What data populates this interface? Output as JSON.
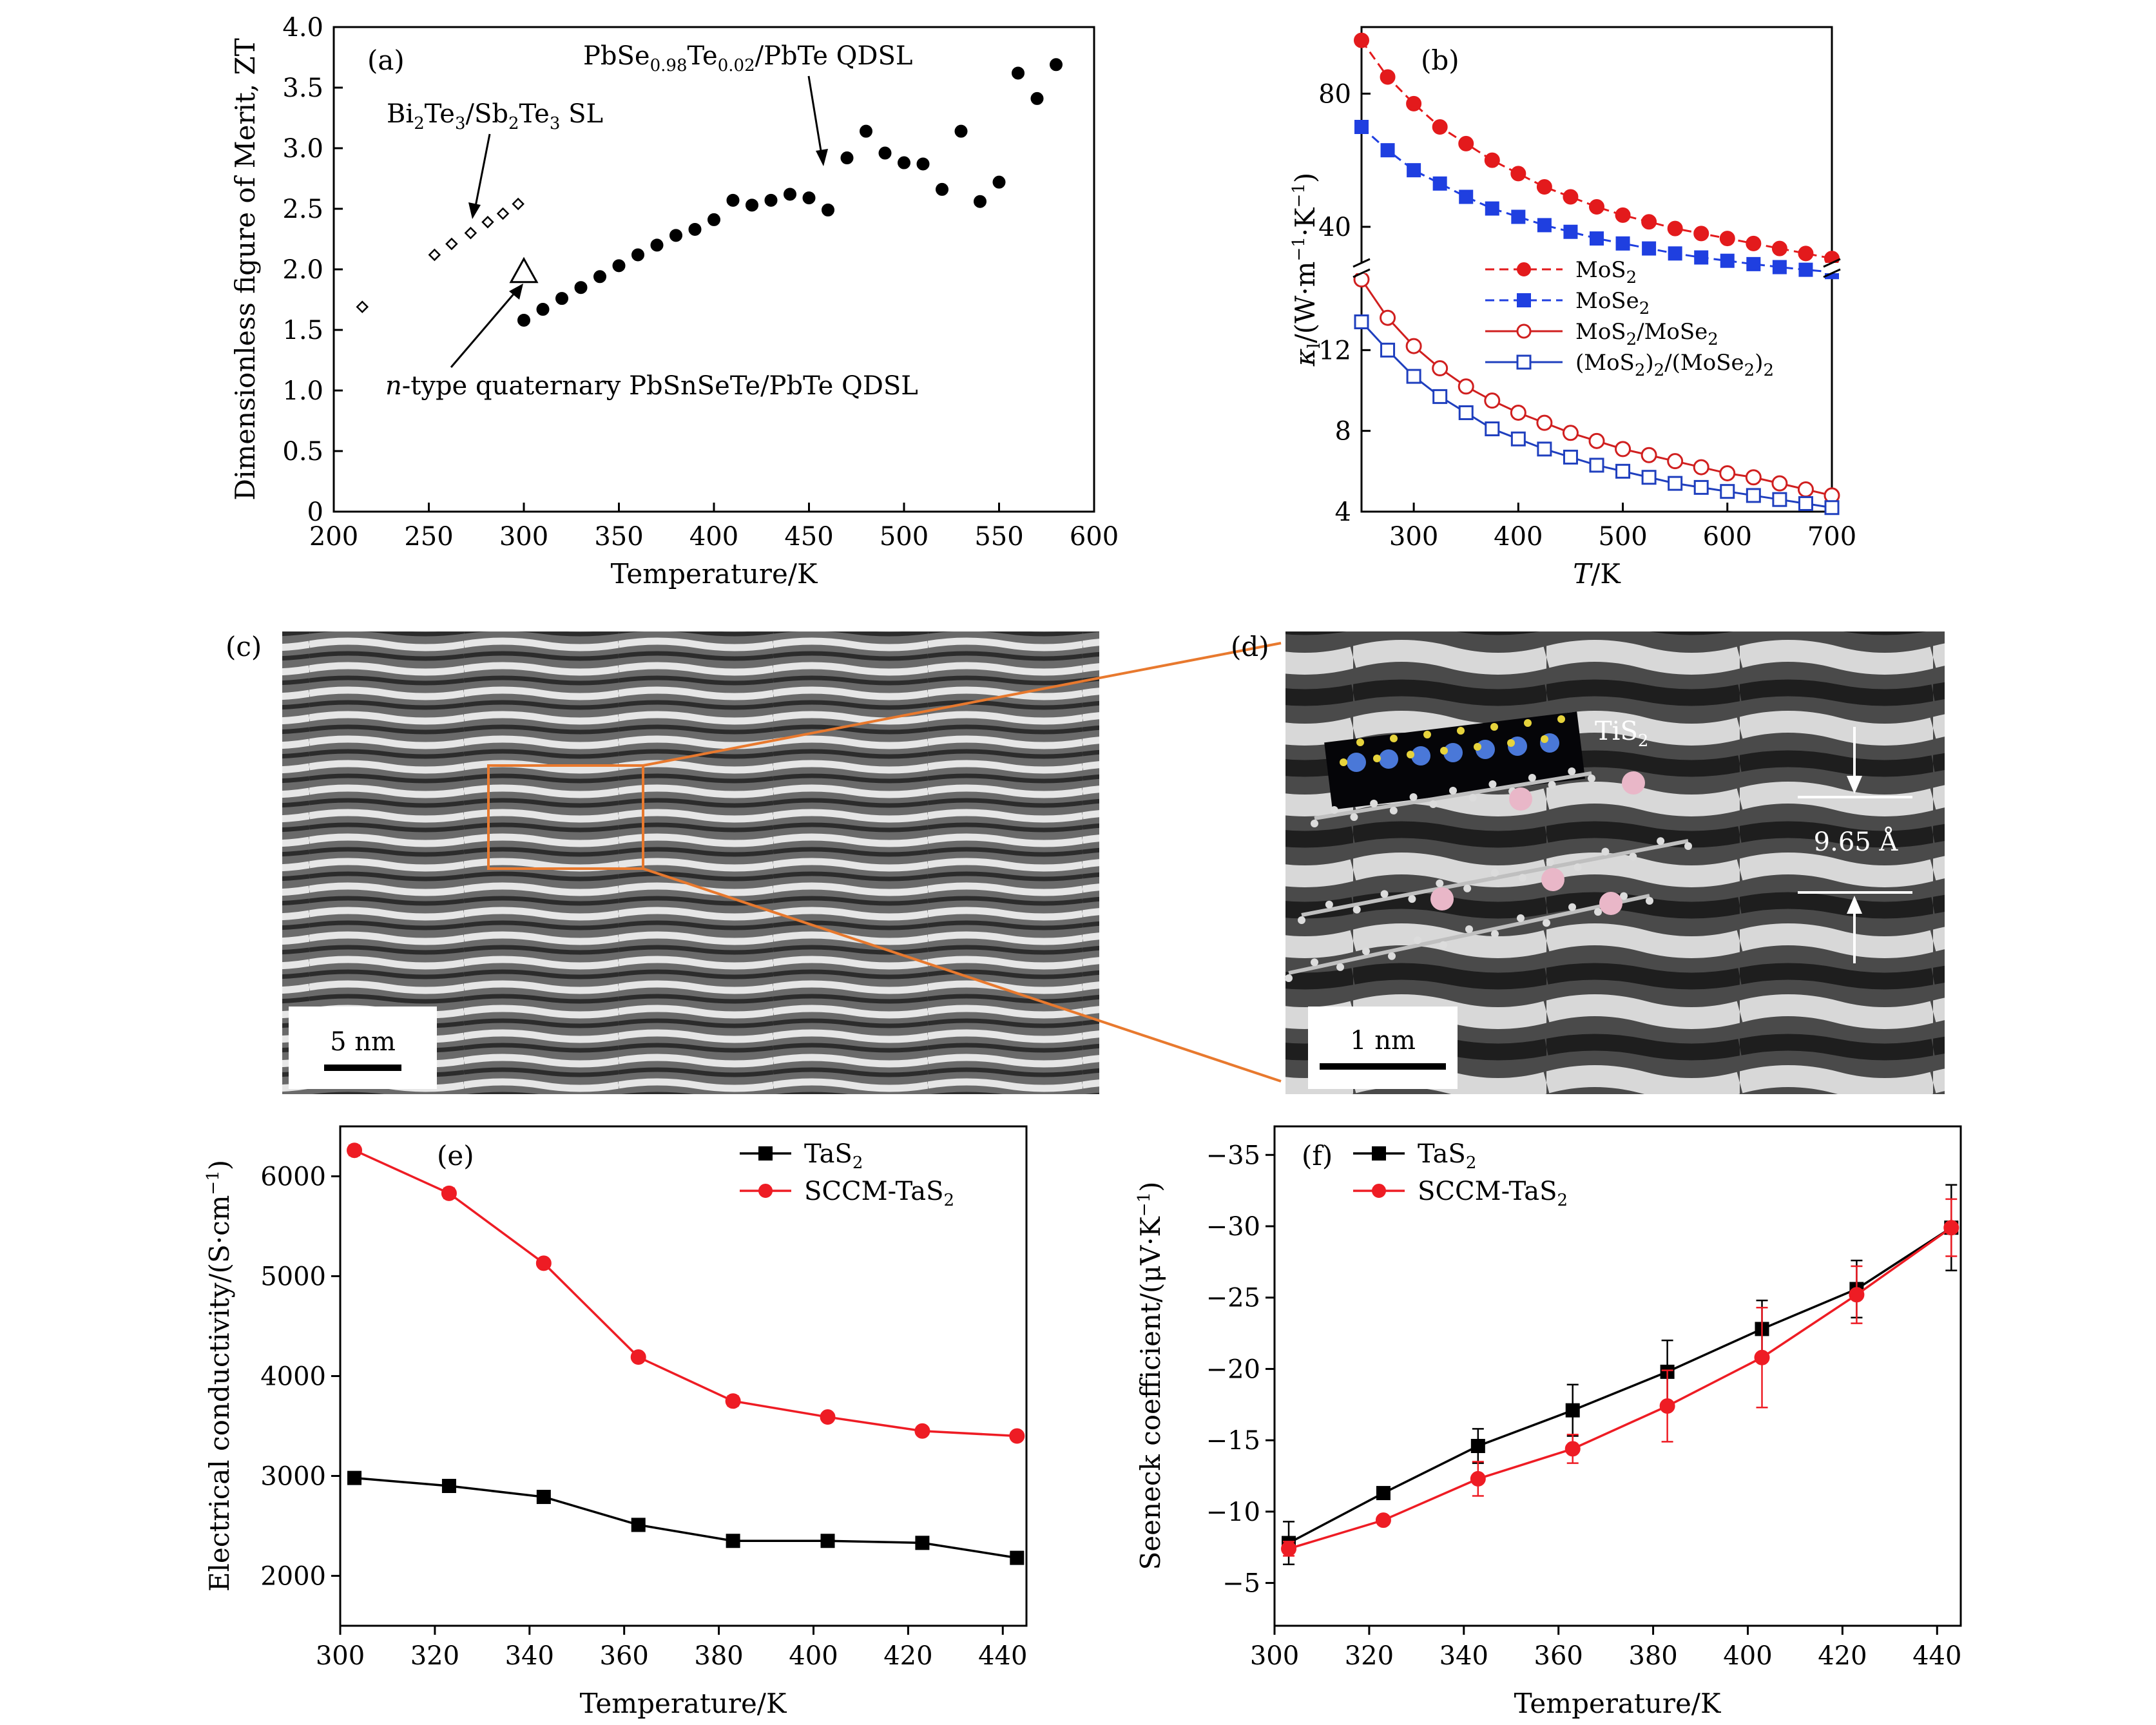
{
  "chart_data": [
    {
      "id": "a",
      "type": "scatter",
      "panel_label": "(a)",
      "xlabel": "Temperature/K",
      "ylabel": "Dimensionless figure of Merit, ZT",
      "xlim": [
        200,
        600
      ],
      "ylim": [
        0,
        4.0
      ],
      "xticks": [
        "200",
        "250",
        "300",
        "350",
        "400",
        "450",
        "500",
        "550",
        "600"
      ],
      "yticks": [
        "0",
        "0.5",
        "1.0",
        "1.5",
        "2.0",
        "2.5",
        "3.0",
        "3.5",
        "4.0"
      ],
      "series": [
        {
          "name": "Bi2Te3/Sb2Te3 SL",
          "marker": "diamond-open",
          "x": [
            215,
            253,
            262,
            272,
            281,
            289,
            297
          ],
          "y": [
            1.69,
            2.12,
            2.21,
            2.3,
            2.39,
            2.46,
            2.54
          ]
        },
        {
          "name": "n-type quaternary PbSnSeTe/PbTe QDSL",
          "marker": "triangle-open",
          "x": [
            300
          ],
          "y": [
            1.98
          ]
        },
        {
          "name": "PbSe0.98Te0.02/PbTe QDSL",
          "marker": "circle-filled",
          "x": [
            300,
            310,
            320,
            330,
            340,
            350,
            360,
            370,
            380,
            390,
            400,
            410,
            420,
            430,
            440,
            450,
            460,
            470,
            480,
            490,
            500,
            510,
            520,
            530,
            540,
            550,
            560,
            570,
            580
          ],
          "y": [
            1.58,
            1.67,
            1.76,
            1.85,
            1.94,
            2.03,
            2.12,
            2.2,
            2.28,
            2.33,
            2.41,
            2.57,
            2.53,
            2.57,
            2.62,
            2.59,
            2.49,
            2.92,
            3.14,
            2.96,
            2.88,
            2.87,
            2.66,
            3.14,
            2.56,
            2.72,
            3.62,
            3.41,
            3.69
          ]
        }
      ],
      "annotations": {
        "bi": {
          "pre": "Bi",
          "s1": "2",
          "mid": "Te",
          "s2": "3",
          "mid2": "/Sb",
          "s3": "2",
          "mid3": "Te",
          "s4": "3",
          "post": " SL"
        },
        "pbse": {
          "pre": "PbSe",
          "s1": "0.98",
          "mid": "Te",
          "s2": "0.02",
          "post": "/PbTe QDSL"
        },
        "ntype": {
          "italic": "n",
          "post": "-type quaternary PbSnSeTe/PbTe QDSL"
        }
      }
    },
    {
      "id": "b",
      "type": "line",
      "panel_label": "(b)",
      "xlabel": "T/K",
      "ylabel": "κ1/(W·m-1·K-1)",
      "xlim": [
        250,
        700
      ],
      "xticks": [
        "300",
        "400",
        "500",
        "600",
        "700"
      ],
      "upper": {
        "ylim": [
          28,
          100
        ],
        "yticks": [
          "40",
          "80"
        ]
      },
      "lower": {
        "ylim": [
          4,
          16
        ],
        "yticks": [
          "4",
          "8",
          "12"
        ]
      },
      "x": [
        250,
        275,
        300,
        325,
        350,
        375,
        400,
        425,
        450,
        475,
        500,
        525,
        550,
        575,
        600,
        625,
        650,
        675,
        700
      ],
      "series": [
        {
          "name": "MoS2",
          "color": "#e31a1c",
          "marker": "circle-filled",
          "dash": true,
          "axis": "upper",
          "values": [
            96,
            85,
            77,
            70,
            65,
            60,
            56,
            52,
            49,
            46,
            43.5,
            41.5,
            39.5,
            38,
            36.5,
            35,
            33.5,
            32,
            30.5
          ]
        },
        {
          "name": "MoSe2",
          "color": "#1f3fe0",
          "marker": "square-filled",
          "dash": true,
          "axis": "upper",
          "values": [
            70,
            63,
            57,
            53,
            49,
            45.5,
            43,
            40.5,
            38.5,
            36.5,
            35,
            33.5,
            32,
            30.8,
            29.8,
            28.8,
            27.9,
            27.1,
            26.4
          ]
        },
        {
          "name": "MoS2/MoSe2",
          "color": "#d01f1f",
          "marker": "circle-open",
          "dash": false,
          "axis": "lower",
          "values": [
            15.5,
            13.6,
            12.2,
            11.1,
            10.2,
            9.5,
            8.9,
            8.4,
            7.9,
            7.5,
            7.1,
            6.8,
            6.5,
            6.2,
            5.9,
            5.7,
            5.4,
            5.1,
            4.8
          ]
        },
        {
          "name": "(MoS2)2/(MoSe2)2",
          "color": "#1f3fbe",
          "marker": "square-open",
          "dash": false,
          "axis": "lower",
          "values": [
            13.4,
            12.0,
            10.7,
            9.7,
            8.9,
            8.1,
            7.6,
            7.1,
            6.7,
            6.3,
            6.0,
            5.7,
            5.4,
            5.2,
            5.0,
            4.8,
            4.6,
            4.4,
            4.2
          ]
        }
      ],
      "legend_labels": [
        {
          "pre": "MoS",
          "sub": "2"
        },
        {
          "pre": "MoSe",
          "sub": "2"
        },
        {
          "pre": "MoS",
          "sub": "2",
          "mid": "/MoSe",
          "sub2": "2"
        },
        {
          "pre": "(MoS",
          "sub": "2",
          "mid": ")",
          "sub2": "2",
          "mid2": "/(MoSe",
          "sub3": "2",
          "mid3": ")",
          "sub4": "2"
        }
      ]
    },
    {
      "id": "e",
      "type": "line",
      "panel_label": "(e)",
      "xlabel": "Temperature/K",
      "ylabel": "Electrical conductivity/(S·cm-1)",
      "xlim": [
        300,
        445
      ],
      "ylim": [
        1500,
        6500
      ],
      "xticks": [
        "300",
        "320",
        "340",
        "360",
        "380",
        "400",
        "420",
        "440"
      ],
      "yticks": [
        "2000",
        "3000",
        "4000",
        "5000",
        "6000"
      ],
      "x": [
        303,
        323,
        343,
        363,
        383,
        403,
        423,
        443
      ],
      "series": [
        {
          "name": "TaS2",
          "color": "#000000",
          "marker": "square-filled",
          "values": [
            2980,
            2900,
            2790,
            2510,
            2350,
            2350,
            2330,
            2180
          ],
          "err": [
            20,
            20,
            20,
            20,
            20,
            20,
            20,
            20
          ]
        },
        {
          "name": "SCCM-TaS2",
          "color": "#ee1c24",
          "marker": "circle-filled",
          "values": [
            6260,
            5830,
            5130,
            4190,
            3750,
            3590,
            3450,
            3400
          ],
          "err": [
            50,
            50,
            35,
            35,
            50,
            20,
            20,
            20
          ]
        }
      ],
      "legend_labels": [
        {
          "pre": "TaS",
          "sub": "2"
        },
        {
          "pre": "SCCM-TaS",
          "sub": "2"
        }
      ]
    },
    {
      "id": "f",
      "type": "line",
      "panel_label": "(f)",
      "xlabel": "Temperature/K",
      "ylabel": "Seeneck coefficient/(μV·K-1)",
      "xlim": [
        300,
        445
      ],
      "ylim": [
        -2,
        -37
      ],
      "y_inverted": true,
      "xticks": [
        "300",
        "320",
        "340",
        "360",
        "380",
        "400",
        "420",
        "440"
      ],
      "yticks": [
        "-5",
        "-10",
        "-15",
        "-20",
        "-25",
        "-30",
        "-35"
      ],
      "x": [
        303,
        323,
        343,
        363,
        383,
        403,
        423,
        443
      ],
      "series": [
        {
          "name": "TaS2",
          "color": "#000000",
          "marker": "square-filled",
          "values": [
            -7.8,
            -11.3,
            -14.6,
            -17.1,
            -19.8,
            -22.8,
            -25.6,
            -29.9
          ],
          "err": [
            1.5,
            0.2,
            1.2,
            1.8,
            2.2,
            2.0,
            2.0,
            3.0
          ]
        },
        {
          "name": "SCCM-TaS2",
          "color": "#ee1c24",
          "marker": "circle-filled",
          "values": [
            -7.4,
            -9.4,
            -12.3,
            -14.4,
            -17.4,
            -20.8,
            -25.2,
            -29.9
          ],
          "err": [
            0.5,
            0.2,
            1.2,
            1.0,
            2.5,
            3.5,
            2.0,
            2.0
          ]
        }
      ],
      "legend_labels": [
        {
          "pre": "TaS",
          "sub": "2"
        },
        {
          "pre": "SCCM-TaS",
          "sub": "2"
        }
      ]
    }
  ],
  "images": {
    "c": {
      "panel_label": "(c)",
      "scale_bar": "5 nm"
    },
    "d": {
      "panel_label": "(d)",
      "scale_bar": "1 nm",
      "material_pre": "TiS",
      "material_sub": "2",
      "spacing": "9.65 Å"
    }
  }
}
